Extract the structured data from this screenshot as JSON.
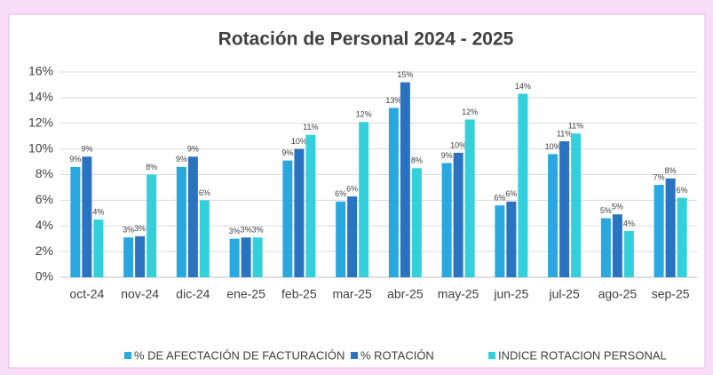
{
  "chart_data": {
    "type": "bar",
    "title": "Rotación de Personal 2024 - 2025",
    "categories": [
      "oct-24",
      "nov-24",
      "dic-24",
      "ene-25",
      "feb-25",
      "mar-25",
      "abr-25",
      "may-25",
      "jun-25",
      "jul-25",
      "ago-25",
      "sep-25"
    ],
    "series": [
      {
        "name": "% DE AFECTACIÓN DE FACTURACIÓN",
        "color": "#29a8e0",
        "values": [
          8.6,
          3.1,
          8.6,
          3.0,
          9.1,
          5.9,
          13.2,
          8.9,
          5.6,
          9.6,
          4.6,
          7.2
        ],
        "value_labels": [
          "9%",
          "3%",
          "9%",
          "3%",
          "9%",
          "6%",
          "13%",
          "9%",
          "6%",
          "10%",
          "5%",
          "7%"
        ]
      },
      {
        "name": "% ROTACIÓN",
        "color": "#2a73c1",
        "values": [
          9.4,
          3.2,
          9.4,
          3.1,
          10.0,
          6.3,
          15.2,
          9.7,
          5.9,
          10.6,
          4.9,
          7.7
        ],
        "value_labels": [
          "9%",
          "3%",
          "9%",
          "3%",
          "10%",
          "6%",
          "15%",
          "10%",
          "6%",
          "11%",
          "5%",
          "8%"
        ]
      },
      {
        "name": "INDICE ROTACION PERSONAL",
        "color": "#33d0dc",
        "values": [
          4.5,
          8.0,
          6.0,
          3.1,
          11.1,
          12.1,
          8.5,
          12.3,
          14.3,
          11.2,
          3.6,
          6.2
        ],
        "value_labels": [
          "4%",
          "8%",
          "6%",
          "3%",
          "11%",
          "12%",
          "8%",
          "12%",
          "14%",
          "11%",
          "4%",
          "6%"
        ]
      }
    ],
    "ylim": [
      0,
      16
    ],
    "yticks": [
      {
        "value": 0,
        "label": "0%"
      },
      {
        "value": 2,
        "label": "2%"
      },
      {
        "value": 4,
        "label": "4%"
      },
      {
        "value": 6,
        "label": "6%"
      },
      {
        "value": 8,
        "label": "8%"
      },
      {
        "value": 10,
        "label": "10%"
      },
      {
        "value": 12,
        "label": "12%"
      },
      {
        "value": 14,
        "label": "14%"
      },
      {
        "value": 16,
        "label": "16%"
      }
    ],
    "grid": true,
    "legend": "bottom"
  }
}
